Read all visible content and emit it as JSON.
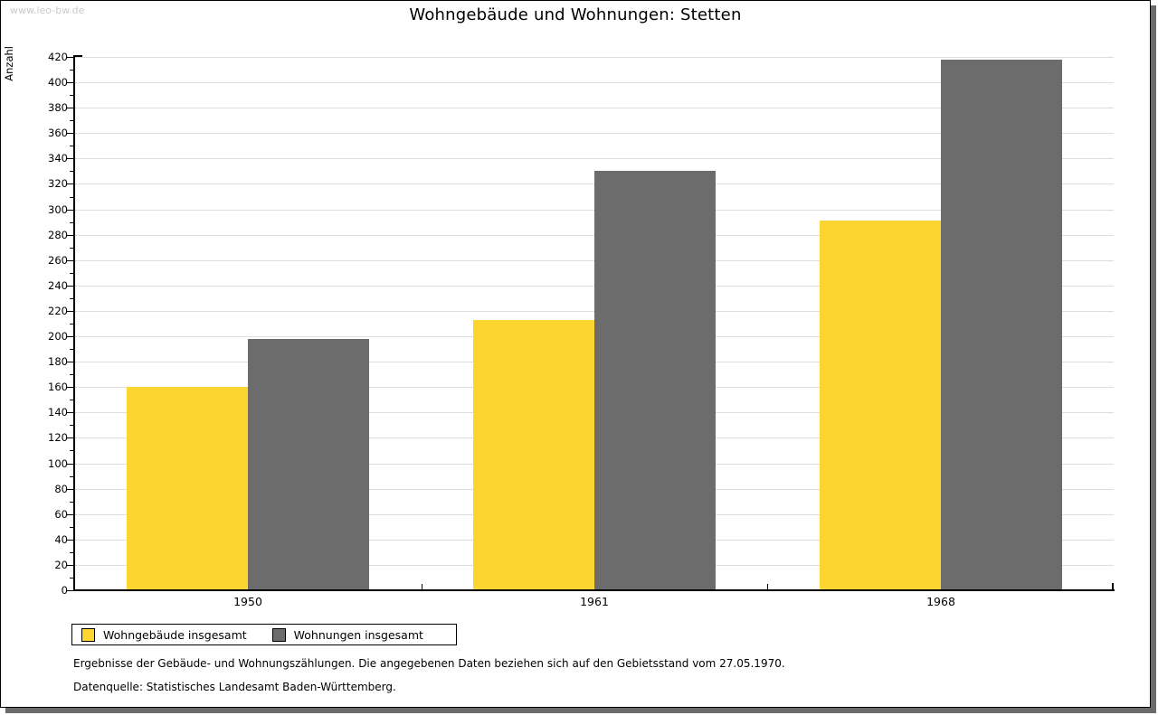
{
  "watermark": "www.leo-bw.de",
  "title": "Wohngebäude und Wohnungen: Stetten",
  "footnotes": [
    "Ergebnisse der Gebäude- und Wohnungszählungen. Die angegebenen Daten beziehen sich auf den Gebietsstand vom 27.05.1970.",
    "Datenquelle: Statistisches Landesamt Baden-Württemberg."
  ],
  "chart_data": {
    "type": "bar",
    "title": "Wohngebäude und Wohnungen: Stetten",
    "categories": [
      "1950",
      "1961",
      "1968"
    ],
    "series": [
      {
        "name": "Wohngebäude insgesamt",
        "color": "#FCD530",
        "values": [
          160,
          213,
          291
        ]
      },
      {
        "name": "Wohnungen insgesamt",
        "color": "#6C6C6C",
        "values": [
          198,
          330,
          418
        ]
      }
    ],
    "xlabel": "",
    "ylabel": "Anzahl",
    "ylim": [
      0,
      420
    ],
    "ytick_step": 20,
    "ytick_minor_step": 10,
    "grid": "horizontal-only",
    "gridline_color": "#DDDDDD",
    "axis_color": "#000000",
    "legend_position": "bottom-left"
  }
}
